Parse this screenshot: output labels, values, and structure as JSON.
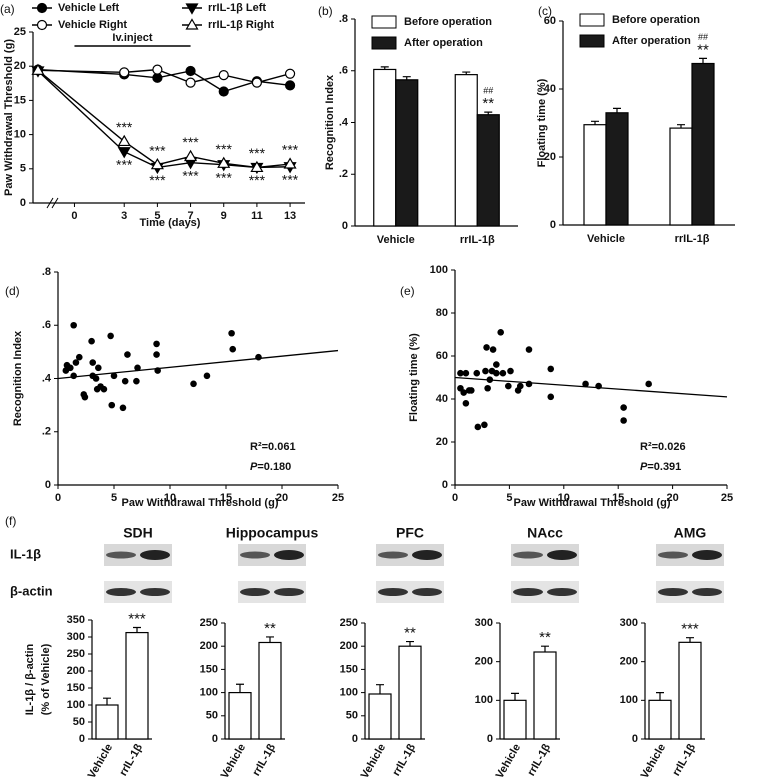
{
  "chart_data": [
    {
      "type": "line",
      "panel": "(a)",
      "xlabel": "Time (days)",
      "ylabel": "Paw Withdrawal Threshold (g)",
      "x": [
        -2.2,
        3,
        5,
        7,
        9,
        11,
        13
      ],
      "xlim": [
        -2.5,
        13.9
      ],
      "xticks": [
        0,
        3,
        5,
        7,
        9,
        11,
        13
      ],
      "ylim": [
        0,
        25
      ],
      "yticks": [
        0,
        5,
        10,
        15,
        20,
        25
      ],
      "annotation": {
        "text": "Iv.inject",
        "from": 0,
        "to": 7
      },
      "series": [
        {
          "name": "Vehicle Left",
          "color": "#000000",
          "marker": "circle",
          "filled": true,
          "values": [
            19.5,
            18.8,
            18.3,
            19.3,
            16.3,
            17.8,
            17.2
          ]
        },
        {
          "name": "Vehicle Right",
          "color": "#000000",
          "marker": "circle",
          "filled": false,
          "values": [
            19.4,
            19.1,
            19.5,
            17.6,
            18.7,
            17.6,
            18.9
          ]
        },
        {
          "name": "rrIL-1β Left",
          "color": "#000000",
          "marker": "triangle-down",
          "filled": true,
          "values": [
            19.3,
            7.5,
            5.2,
            5.9,
            5.6,
            5.2,
            5.3
          ],
          "significance": [
            null,
            "***",
            "***",
            "***",
            "***",
            "***",
            "***"
          ],
          "label_side": "below"
        },
        {
          "name": "rrIL-1β Right",
          "color": "#000000",
          "marker": "triangle-up",
          "filled": false,
          "values": [
            19.4,
            9.0,
            5.6,
            6.8,
            5.8,
            5.2,
            5.7
          ],
          "significance": [
            null,
            "***",
            "***",
            "***",
            "***",
            "***",
            "***"
          ],
          "label_side": "above"
        }
      ]
    },
    {
      "type": "bar",
      "panel": "(b)",
      "ylabel": "Recognition Index",
      "categories": [
        "Vehicle",
        "rrIL-1β"
      ],
      "ylim": [
        0,
        0.8
      ],
      "yticks": [
        0,
        {
          "value": 0.2,
          "label": ".2"
        },
        {
          "value": 0.4,
          "label": ".4"
        },
        {
          "value": 0.6,
          "label": ".6"
        },
        {
          "value": 0.8,
          "label": ".8"
        }
      ],
      "series": [
        {
          "name": "Before operation",
          "color": "#ffffff",
          "values": [
            0.605,
            0.585
          ],
          "errors": [
            0.01,
            0.01
          ]
        },
        {
          "name": "After operation",
          "color": "#1a1a1a",
          "values": [
            0.565,
            0.43
          ],
          "errors": [
            0.012,
            0.01
          ],
          "significance": [
            null,
            "**"
          ],
          "significance_vs_vehicle": [
            null,
            "##"
          ]
        }
      ]
    },
    {
      "type": "bar",
      "panel": "(c)",
      "ylabel": "Floating time (%)",
      "categories": [
        "Vehicle",
        "rrIL-1β"
      ],
      "ylim": [
        0,
        60
      ],
      "yticks": [
        0,
        20,
        40,
        60
      ],
      "series": [
        {
          "name": "Before operation",
          "color": "#ffffff",
          "values": [
            29.5,
            28.5
          ],
          "errors": [
            1.0,
            1.0
          ]
        },
        {
          "name": "After operation",
          "color": "#1a1a1a",
          "values": [
            33,
            47.5
          ],
          "errors": [
            1.3,
            1.5
          ],
          "significance": [
            null,
            "**"
          ],
          "significance_vs_vehicle": [
            null,
            "##"
          ]
        }
      ]
    },
    {
      "type": "scatter",
      "panel": "(d)",
      "xlabel": "Paw Withdrawal Threshold (g)",
      "ylabel": "Recognition Index",
      "color": "#000000",
      "xlim": [
        0,
        25
      ],
      "xticks": [
        0,
        5,
        10,
        15,
        20,
        25
      ],
      "ylim": [
        0,
        0.8
      ],
      "yticks": [
        0,
        {
          "value": 0.2,
          "label": ".2"
        },
        {
          "value": 0.4,
          "label": ".4"
        },
        {
          "value": 0.6,
          "label": ".6"
        },
        {
          "value": 0.8,
          "label": ".8"
        }
      ],
      "x": [
        1.4,
        0.8,
        1.1,
        1.6,
        0.7,
        1.4,
        1.9,
        2.3,
        2.4,
        3.0,
        3.1,
        3.1,
        3.4,
        3.5,
        3.6,
        3.8,
        4.1,
        4.7,
        4.8,
        5.0,
        5.8,
        6.0,
        6.2,
        7.0,
        7.1,
        8.8,
        8.9,
        8.8,
        12.1,
        13.3,
        15.6,
        15.5,
        17.9
      ],
      "values": [
        0.6,
        0.45,
        0.44,
        0.46,
        0.43,
        0.41,
        0.48,
        0.34,
        0.33,
        0.54,
        0.46,
        0.41,
        0.4,
        0.36,
        0.44,
        0.37,
        0.36,
        0.56,
        0.3,
        0.41,
        0.29,
        0.39,
        0.49,
        0.39,
        0.44,
        0.49,
        0.43,
        0.53,
        0.38,
        0.41,
        0.51,
        0.57,
        0.48
      ],
      "fit": {
        "x": [
          0,
          25
        ],
        "y": [
          0.4,
          0.505
        ]
      },
      "stats": [
        {
          "label": "R²",
          "text": "=0.061"
        },
        {
          "label": "P",
          "text": "=0.180"
        }
      ]
    },
    {
      "type": "scatter",
      "panel": "(e)",
      "xlabel": "Paw Withdrawal Threshold (g)",
      "ylabel": "Floating time (%)",
      "color": "#000000",
      "xlim": [
        0,
        25
      ],
      "xticks": [
        0,
        5,
        10,
        15,
        20,
        25
      ],
      "ylim": [
        0,
        100
      ],
      "yticks": [
        0,
        20,
        40,
        60,
        80,
        100
      ],
      "x": [
        0.5,
        1.0,
        0.5,
        0.8,
        1.0,
        1.3,
        1.5,
        2.0,
        2.1,
        2.7,
        2.8,
        2.9,
        3.0,
        3.2,
        3.4,
        3.5,
        3.8,
        3.8,
        4.2,
        4.4,
        4.9,
        5.1,
        5.8,
        6.0,
        6.8,
        6.8,
        8.8,
        8.8,
        12.0,
        13.2,
        15.5,
        15.5,
        17.8
      ],
      "values": [
        52,
        52,
        45,
        43,
        38,
        44,
        44,
        52,
        27,
        28,
        53,
        64,
        45,
        49,
        53,
        63,
        52,
        56,
        71,
        52,
        46,
        53,
        44,
        46,
        63,
        47,
        54,
        41,
        47,
        46,
        36,
        30,
        47
      ],
      "fit": {
        "x": [
          0,
          25
        ],
        "y": [
          50,
          41
        ]
      },
      "stats": [
        {
          "label": "R²",
          "text": "=0.026"
        },
        {
          "label": "P",
          "text": "=0.391"
        }
      ]
    },
    {
      "type": "bar",
      "panel": "(f)",
      "title": "SDH",
      "blot_labels": [
        "IL-1β",
        "β-actin"
      ],
      "ylabel": [
        "IL-1β / β-actin",
        "(% of Vehicle)"
      ],
      "categories": [
        "Vehicle",
        "rrIL-1β"
      ],
      "color": "#ffffff",
      "values": [
        100,
        313
      ],
      "errors": [
        20,
        15
      ],
      "significance": [
        null,
        "***"
      ],
      "ylim": [
        0,
        350
      ],
      "yticks": [
        0,
        50,
        100,
        150,
        200,
        250,
        300,
        350
      ]
    },
    {
      "type": "bar",
      "title": "Hippocampus",
      "categories": [
        "Vehicle",
        "rrIL-1β"
      ],
      "color": "#ffffff",
      "values": [
        100,
        208
      ],
      "errors": [
        18,
        12
      ],
      "significance": [
        null,
        "**"
      ],
      "ylim": [
        0,
        250
      ],
      "yticks": [
        0,
        50,
        100,
        150,
        200,
        250
      ]
    },
    {
      "type": "bar",
      "title": "PFC",
      "categories": [
        "Vehicle",
        "rrIL-1β"
      ],
      "color": "#ffffff",
      "values": [
        97,
        200
      ],
      "errors": [
        20,
        10
      ],
      "significance": [
        null,
        "**"
      ],
      "ylim": [
        0,
        250
      ],
      "yticks": [
        0,
        50,
        100,
        150,
        200,
        250
      ]
    },
    {
      "type": "bar",
      "title": "NAcc",
      "categories": [
        "Vehicle",
        "rrIL-1β"
      ],
      "color": "#ffffff",
      "values": [
        100,
        225
      ],
      "errors": [
        18,
        15
      ],
      "significance": [
        null,
        "**"
      ],
      "ylim": [
        0,
        300
      ],
      "yticks": [
        0,
        100,
        200,
        300
      ]
    },
    {
      "type": "bar",
      "title": "AMG",
      "categories": [
        "Vehicle",
        "rrIL-1β"
      ],
      "color": "#ffffff",
      "values": [
        100,
        250
      ],
      "errors": [
        20,
        12
      ],
      "significance": [
        null,
        "***"
      ],
      "ylim": [
        0,
        300
      ],
      "yticks": [
        0,
        100,
        200,
        300
      ]
    }
  ]
}
